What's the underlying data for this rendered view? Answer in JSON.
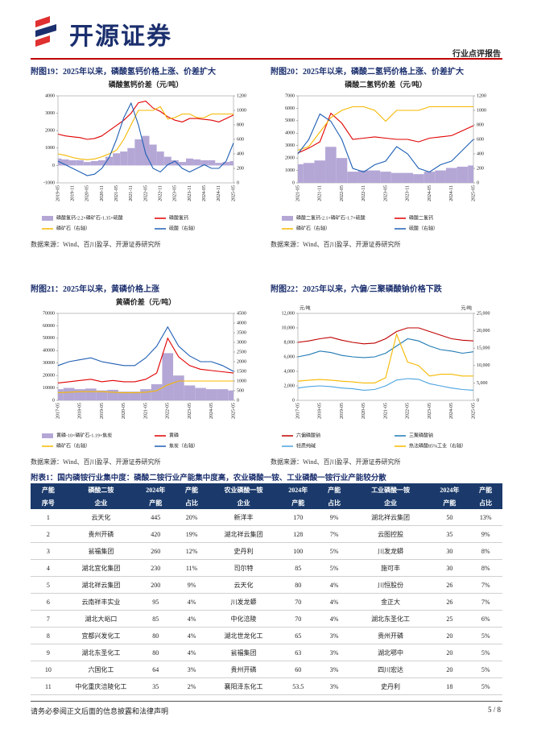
{
  "header": {
    "logo": "开源证券",
    "report_type": "行业点评报告"
  },
  "figures": [
    {
      "title": "附图19：2025年以来，磷酸氢钙价格上涨、价差扩大",
      "source": "数据来源：Wind、百川盈孚、开源证券研究所",
      "chart": {
        "type": "line",
        "title": "磷酸氢钙价差（元/吨）",
        "title_color": "#e00000",
        "x": [
          "2019-05",
          null,
          "2019-11",
          null,
          "2020-05",
          null,
          "2020-11",
          null,
          "2021-05",
          null,
          "2021-11",
          null,
          "2022-05",
          null,
          "2022-11",
          null,
          "2023-05",
          null,
          "2023-11",
          null,
          "2024-05",
          null,
          "2024-11",
          null,
          "2025-05"
        ],
        "ylim": [
          -1000,
          4000
        ],
        "yticks": [
          -1000,
          0,
          1000,
          2000,
          3000,
          4000
        ],
        "y2lim": [
          0,
          1200
        ],
        "y2ticks": [
          0,
          200,
          400,
          600,
          800,
          1000,
          1200
        ],
        "series": [
          {
            "name": "磷酸氢钙-2.2×磷矿石-1.35×硫酸",
            "color": "#b4a7d6",
            "style": "area",
            "values": [
              400,
              350,
              300,
              300,
              200,
              250,
              300,
              500,
              700,
              800,
              1000,
              1500,
              1700,
              1200,
              800,
              500,
              300,
              200,
              400,
              350,
              300,
              300,
              150,
              200,
              250
            ]
          },
          {
            "name": "磷酸氢钙",
            "color": "#e00000",
            "values": [
              1800,
              1700,
              1650,
              1600,
              1500,
              1550,
              1700,
              2000,
              2300,
              2600,
              3000,
              3600,
              3700,
              3300,
              3100,
              2800,
              2600,
              2500,
              2700,
              2700,
              2650,
              2600,
              2500,
              2700,
              2900
            ]
          },
          {
            "name": "磷矿石（右轴）",
            "color": "#f5b800",
            "axis": "y2",
            "values": [
              400,
              380,
              350,
              330,
              320,
              330,
              360,
              400,
              450,
              600,
              800,
              1000,
              1000,
              1000,
              1050,
              880,
              900,
              950,
              950,
              900,
              900,
              950,
              950,
              950,
              950
            ]
          },
          {
            "name": "硫酸（右轴）",
            "color": "#1f5fb4",
            "axis": "y2",
            "values": [
              300,
              250,
              200,
              150,
              100,
              120,
              200,
              350,
              600,
              900,
              1100,
              800,
              400,
              200,
              150,
              250,
              300,
              200,
              150,
              200,
              250,
              200,
              200,
              300,
              550
            ]
          }
        ]
      }
    },
    {
      "title": "附图20：2025年以来，磷酸二氢钙价格上涨、价差扩大",
      "source": "数据来源：Wind、百川盈孚、开源证券研究所",
      "chart": {
        "type": "line",
        "title": "磷酸二氢钙价差（元/吨）",
        "title_color": "#e00000",
        "x": [
          "2021-05",
          null,
          "2021-11",
          null,
          "2022-05",
          null,
          "2022-11",
          null,
          "2023-05",
          null,
          "2023-11",
          null,
          "2024-05",
          null,
          "2024-11",
          null,
          "2025-05"
        ],
        "ylim": [
          0,
          7000
        ],
        "yticks": [
          0,
          1000,
          2000,
          3000,
          4000,
          5000,
          6000,
          7000
        ],
        "y2lim": [
          0,
          1200
        ],
        "y2ticks": [
          0,
          200,
          400,
          600,
          800,
          1000,
          1200
        ],
        "series": [
          {
            "name": "磷酸二氢钙-2.1×磷矿石-1.7×硫酸",
            "color": "#b4a7d6",
            "style": "area",
            "values": [
              1500,
              1600,
              1800,
              2900,
              2000,
              900,
              1000,
              1000,
              900,
              800,
              800,
              700,
              900,
              1000,
              1200,
              1300,
              1400
            ]
          },
          {
            "name": "磷酸二氢钙",
            "color": "#e00000",
            "values": [
              2400,
              2800,
              3300,
              5600,
              4800,
              3500,
              3600,
              3700,
              3600,
              3500,
              3500,
              3300,
              3600,
              3700,
              3800,
              4200,
              4600
            ]
          },
          {
            "name": "磷矿石（右轴）",
            "color": "#f5b800",
            "axis": "y2",
            "values": [
              450,
              500,
              700,
              900,
              1000,
              1050,
              1050,
              1000,
              850,
              1000,
              1000,
              1000,
              1050,
              1050,
              1050,
              1050,
              1050
            ]
          },
          {
            "name": "硫酸（右轴）",
            "color": "#1f5fb4",
            "axis": "y2",
            "values": [
              400,
              600,
              950,
              850,
              600,
              200,
              150,
              250,
              300,
              500,
              400,
              200,
              150,
              250,
              300,
              450,
              600
            ]
          }
        ]
      }
    },
    {
      "title": "附图21：2025年以来，黄磷价格上涨",
      "source": "数据来源：Wind、百川盈孚、开源证券研究所",
      "chart": {
        "type": "line",
        "title": "黄磷价差（元/吨）",
        "title_color": "#e00000",
        "x": [
          "2017-05",
          null,
          "2018-05",
          null,
          "2019-05",
          null,
          "2020-05",
          null,
          "2021-05",
          null,
          "2022-05",
          null,
          "2023-05",
          null,
          "2024-05",
          null,
          "2025-05"
        ],
        "ylim": [
          0,
          70000
        ],
        "yticks": [
          0,
          10000,
          20000,
          30000,
          40000,
          50000,
          60000,
          70000
        ],
        "y2lim": [
          0,
          4500
        ],
        "y2ticks": [
          0,
          500,
          1000,
          1500,
          2000,
          2500,
          3000,
          3500,
          4000,
          4500
        ],
        "series": [
          {
            "name": "黄磷-10×磷矿石-1.19×焦炭",
            "color": "#b4a7d6",
            "style": "area",
            "values": [
              9000,
              10000,
              9000,
              9500,
              8000,
              8500,
              7000,
              7000,
              9000,
              13000,
              38000,
              20000,
              12000,
              10000,
              9000,
              9000,
              8000
            ]
          },
          {
            "name": "黄磷",
            "color": "#e00000",
            "values": [
              14000,
              15000,
              16000,
              17000,
              15000,
              16000,
              15000,
              15000,
              17000,
              22000,
              50000,
              35000,
              28000,
              25000,
              24000,
              23000,
              22000
            ]
          },
          {
            "name": "磷矿石（右轴）",
            "color": "#f5b800",
            "axis": "y2",
            "values": [
              400,
              420,
              450,
              450,
              450,
              420,
              400,
              400,
              420,
              500,
              800,
              1000,
              1000,
              1000,
              1000,
              1000,
              1000
            ]
          },
          {
            "name": "焦炭（右轴）",
            "color": "#1f5fb4",
            "axis": "y2",
            "values": [
              1800,
              2000,
              2100,
              2200,
              2000,
              1900,
              1800,
              1800,
              2200,
              2800,
              3800,
              2800,
              2300,
              2000,
              2000,
              1800,
              1500
            ]
          }
        ]
      }
    },
    {
      "title": "附图22：2025年以来，六偏/三聚磷酸钠价格下跌",
      "source": "数据来源：Wind、百川盈孚、开源证券研究所",
      "chart": {
        "type": "line",
        "ylabel": "元/吨",
        "y2label": "元/吨",
        "x": [
          "2017-05",
          null,
          "2018-05",
          null,
          "2019-05",
          null,
          "2020-05",
          null,
          "2021-05",
          null,
          "2022-05",
          null,
          "2023-05",
          null,
          "2024-05",
          null,
          "2025-05"
        ],
        "ylim": [
          0,
          12000
        ],
        "yticks": [
          0,
          {
            "value": 2000,
            "label": "2,000"
          },
          {
            "value": 4000,
            "label": "4,000"
          },
          {
            "value": 6000,
            "label": "6,000"
          },
          {
            "value": 8000,
            "label": "8,000"
          },
          {
            "value": 10000,
            "label": "10,000"
          },
          {
            "value": 12000,
            "label": "12,000"
          }
        ],
        "y2lim": [
          0,
          25000
        ],
        "y2ticks": [
          0,
          {
            "value": 5000,
            "label": "5,000"
          },
          {
            "value": 10000,
            "label": "10,000"
          },
          {
            "value": 15000,
            "label": "15,000"
          },
          {
            "value": 20000,
            "label": "20,000"
          },
          {
            "value": 25000,
            "label": "25,000"
          }
        ],
        "series": [
          {
            "name": "六偏磷酸钠",
            "color": "#c00000",
            "values": [
              8000,
              8200,
              8500,
              8700,
              8300,
              8000,
              7800,
              7900,
              8500,
              9500,
              10000,
              10000,
              9500,
              9000,
              8500,
              8300,
              8200
            ]
          },
          {
            "name": "三聚磷酸钠",
            "color": "#1f7ab4",
            "values": [
              6000,
              6300,
              6800,
              6600,
              6200,
              6000,
              5900,
              6000,
              6500,
              7500,
              8500,
              8200,
              7500,
              7000,
              6800,
              6500,
              6700
            ]
          },
          {
            "name": "轻质纯碱",
            "color": "#4aa3df",
            "values": [
              1700,
              1900,
              2000,
              1900,
              1700,
              1600,
              1400,
              1500,
              2000,
              2800,
              3000,
              2900,
              2300,
              2000,
              1700,
              1500,
              1400
            ]
          },
          {
            "name": "热法磷酸85%工业（右轴）",
            "color": "#f5b800",
            "axis": "y2",
            "values": [
              5500,
              5800,
              6000,
              5800,
              5500,
              5300,
              5000,
              5000,
              6500,
              19000,
              11000,
              10000,
              7000,
              7500,
              7500,
              7000,
              7000
            ]
          }
        ]
      }
    }
  ],
  "table": {
    "title": "附表1：国内磷铵行业集中度：磷酸二铵行业产能集中度高，农业磷酸一铵、工业磷酸一铵行业产能较分散",
    "header": [
      [
        "产能",
        "磷酸二铵",
        "2024年",
        "产能",
        "农业磷酸一铵",
        "2024年",
        "产能",
        "工业磷酸一铵",
        "2024年",
        "产能"
      ],
      [
        "序号",
        "企业",
        "产能",
        "占比",
        "企业",
        "产能",
        "占比",
        "企业",
        "产能",
        "占比"
      ]
    ],
    "rows": [
      [
        "1",
        "云天化",
        "445",
        "20%",
        "新洋丰",
        "170",
        "9%",
        "湖北祥云集团",
        "50",
        "13%"
      ],
      [
        "2",
        "贵州开磷",
        "420",
        "19%",
        "湖北祥云集团",
        "128",
        "7%",
        "云图控股",
        "35",
        "9%"
      ],
      [
        "3",
        "瓮福集团",
        "260",
        "12%",
        "史丹利",
        "100",
        "5%",
        "川发龙蟒",
        "30",
        "8%"
      ],
      [
        "4",
        "湖北宜化集团",
        "230",
        "11%",
        "司尔特",
        "85",
        "5%",
        "施可丰",
        "30",
        "8%"
      ],
      [
        "5",
        "湖北祥云集团",
        "200",
        "9%",
        "云天化",
        "80",
        "4%",
        "川恒股份",
        "26",
        "7%"
      ],
      [
        "6",
        "云南祥丰实业",
        "95",
        "4%",
        "川发龙蟒",
        "70",
        "4%",
        "金正大",
        "26",
        "7%"
      ],
      [
        "7",
        "湖北大峪口",
        "85",
        "4%",
        "中化涪陵",
        "70",
        "4%",
        "湖北东圣化工",
        "25",
        "6%"
      ],
      [
        "8",
        "宜都兴发化工",
        "80",
        "4%",
        "湖北世龙化工",
        "65",
        "3%",
        "贵州开磷",
        "20",
        "5%"
      ],
      [
        "9",
        "湖北东圣化工",
        "80",
        "4%",
        "瓮福集团",
        "63",
        "3%",
        "湖北鄂中",
        "20",
        "5%"
      ],
      [
        "10",
        "六国化工",
        "64",
        "3%",
        "贵州开磷",
        "60",
        "3%",
        "四川宏达",
        "20",
        "5%"
      ],
      [
        "11",
        "中化重庆涪陵化工",
        "35",
        "2%",
        "襄阳泽东化工",
        "53.5",
        "3%",
        "史丹利",
        "18",
        "5%"
      ]
    ]
  },
  "footer": {
    "disclaimer": "请务必参阅正文后面的信息披露和法律声明",
    "page": "5 / 8"
  }
}
